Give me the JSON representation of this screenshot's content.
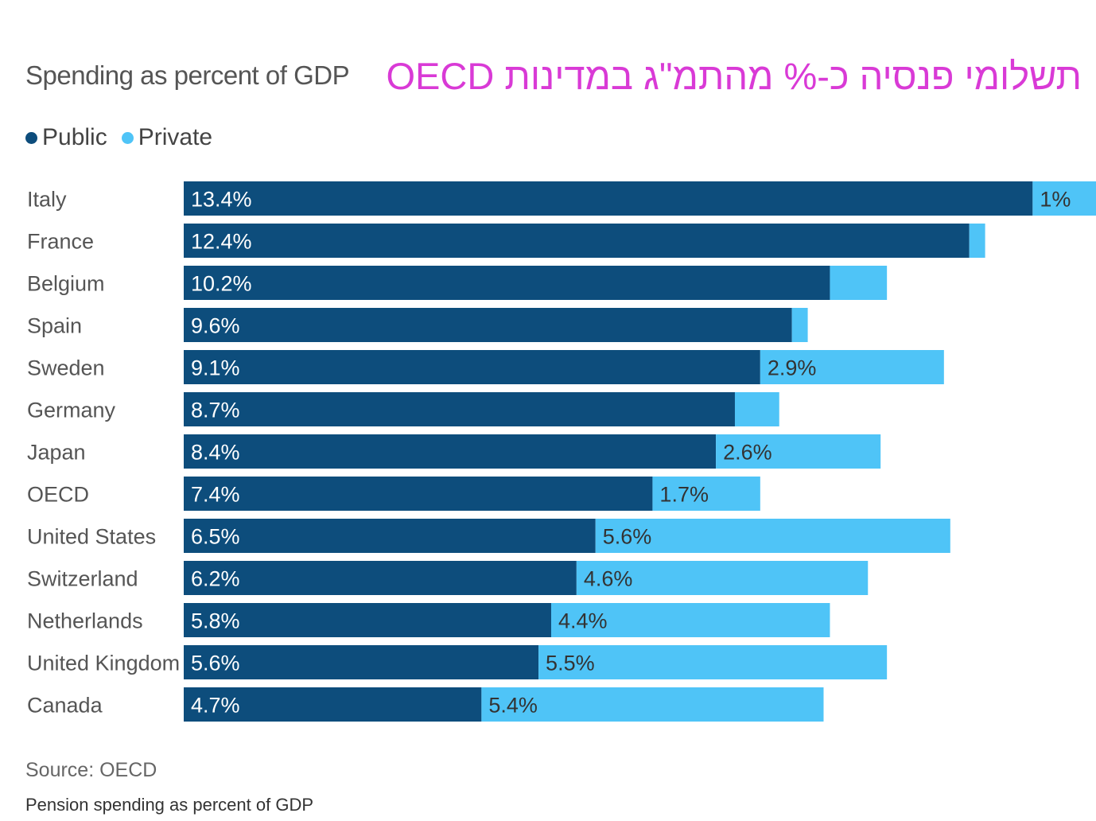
{
  "header": {
    "subtitle": "Spending as percent of GDP",
    "title_he": "תשלומי פנסיה כ-% מהתמ\"ג במדינות OECD"
  },
  "legend": [
    {
      "name": "Public",
      "color": "#0d4d7c"
    },
    {
      "name": "Private",
      "color": "#4fc4f7"
    }
  ],
  "footer": {
    "source": "Source: OECD",
    "note": "Pension spending as percent of GDP"
  },
  "chart_data": {
    "type": "bar",
    "orientation": "horizontal",
    "stacked": true,
    "categories": [
      "Italy",
      "France",
      "Belgium",
      "Spain",
      "Sweden",
      "Germany",
      "Japan",
      "OECD",
      "United States",
      "Switzerland",
      "Netherlands",
      "United Kingdom",
      "Canada"
    ],
    "series": [
      {
        "name": "Public",
        "color": "#0d4d7c",
        "values": [
          13.4,
          12.4,
          10.2,
          9.6,
          9.1,
          8.7,
          8.4,
          7.4,
          6.5,
          6.2,
          5.8,
          5.6,
          4.7
        ],
        "labels": [
          "13.4%",
          "12.4%",
          "10.2%",
          "9.6%",
          "9.1%",
          "8.7%",
          "8.4%",
          "7.4%",
          "6.5%",
          "6.2%",
          "5.8%",
          "5.6%",
          "4.7%"
        ]
      },
      {
        "name": "Private",
        "color": "#4fc4f7",
        "values": [
          1.0,
          0.25,
          0.9,
          0.25,
          2.9,
          0.7,
          2.6,
          1.7,
          5.6,
          4.6,
          4.4,
          5.5,
          5.4
        ],
        "labels": [
          "1%",
          "",
          "",
          "",
          "2.9%",
          "",
          "2.6%",
          "1.7%",
          "5.6%",
          "4.6%",
          "4.4%",
          "5.5%",
          "5.4%"
        ]
      }
    ],
    "xlim": [
      0,
      14.4
    ],
    "grid": false
  }
}
